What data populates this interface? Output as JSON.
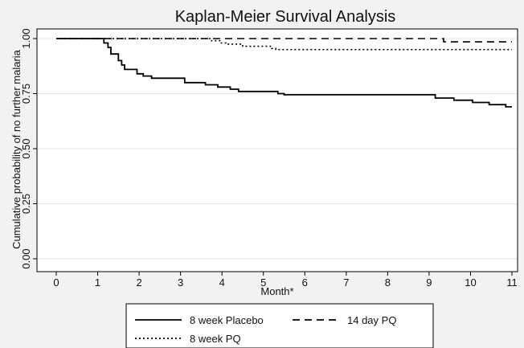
{
  "chart_data": {
    "type": "line",
    "title": "Kaplan-Meier Survival Analysis",
    "xlabel": "Month*",
    "ylabel": "Cumulative probability of no further malaria",
    "xlim": [
      0,
      11
    ],
    "ylim": [
      0,
      1
    ],
    "x_ticks": [
      "0",
      "1",
      "2",
      "3",
      "4",
      "5",
      "6",
      "7",
      "8",
      "9",
      "10",
      "11"
    ],
    "y_ticks": [
      "0.00",
      "0.25",
      "0.50",
      "0.75",
      "1.00"
    ],
    "grid": "horizontal",
    "legend_position": "bottom",
    "series": [
      {
        "name": "8 week Placebo",
        "dash": "solid",
        "color": "#000000",
        "steps": [
          [
            0,
            1.0
          ],
          [
            1.15,
            0.98
          ],
          [
            1.25,
            0.96
          ],
          [
            1.32,
            0.93
          ],
          [
            1.5,
            0.9
          ],
          [
            1.58,
            0.88
          ],
          [
            1.65,
            0.86
          ],
          [
            1.95,
            0.84
          ],
          [
            2.1,
            0.83
          ],
          [
            2.3,
            0.82
          ],
          [
            3.1,
            0.8
          ],
          [
            3.6,
            0.79
          ],
          [
            3.9,
            0.78
          ],
          [
            4.2,
            0.77
          ],
          [
            4.4,
            0.76
          ],
          [
            5.35,
            0.75
          ],
          [
            5.5,
            0.745
          ],
          [
            9.15,
            0.73
          ],
          [
            9.6,
            0.72
          ],
          [
            10.05,
            0.71
          ],
          [
            10.45,
            0.7
          ],
          [
            10.85,
            0.69
          ],
          [
            11.0,
            0.69
          ]
        ]
      },
      {
        "name": "14 day PQ",
        "dash": "dashed",
        "color": "#000000",
        "steps": [
          [
            0,
            1.0
          ],
          [
            9.35,
            0.985
          ],
          [
            11.0,
            0.985
          ]
        ]
      },
      {
        "name": "8 week PQ",
        "dash": "dotted",
        "color": "#000000",
        "steps": [
          [
            0,
            1.0
          ],
          [
            3.75,
            0.99
          ],
          [
            3.95,
            0.98
          ],
          [
            4.1,
            0.975
          ],
          [
            4.5,
            0.965
          ],
          [
            5.2,
            0.955
          ],
          [
            5.3,
            0.95
          ],
          [
            11.0,
            0.95
          ]
        ]
      }
    ]
  }
}
